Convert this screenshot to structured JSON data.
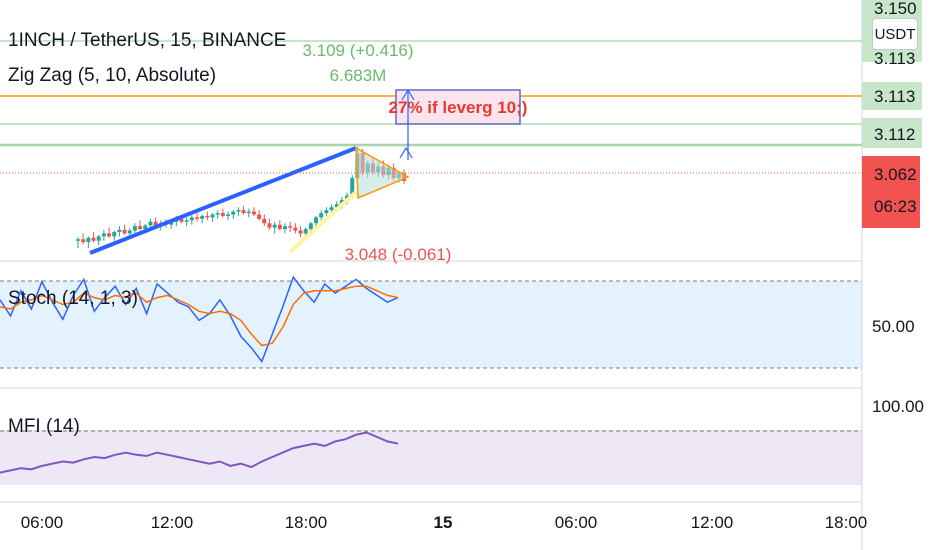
{
  "header": {
    "symbol_line": "1INCH / TetherUS, 15, BINANCE",
    "indicator_line": "Zig Zag (5, 10, Absolute)"
  },
  "price_axis": {
    "unit_button": "USDT",
    "partial_top_label": "3.150",
    "labels": [
      {
        "text": "3.113",
        "bg": "#c8e6c9",
        "fg": "#131722",
        "kind": "line1"
      },
      {
        "text": "3.113",
        "bg": "#c8e6c9",
        "fg": "#131722",
        "kind": "line2"
      },
      {
        "text": "3.112",
        "bg": "#c8e6c9",
        "fg": "#131722",
        "kind": "line3"
      }
    ],
    "current_price": "3.062",
    "countdown": "06:23",
    "current_color": "#f05350",
    "stoch_label": "50.00",
    "mfi_label": "100.00"
  },
  "annotations": {
    "high_price": "3.109 (+0.416)",
    "high_volume": "6.683M",
    "low_price": "3.048 (-0.061)",
    "callout": "27% if leverg 10;)"
  },
  "panes": {
    "stoch_title": "Stoch (14, 1, 3)",
    "mfi_title": "MFI (14)"
  },
  "time_axis": {
    "ticks": [
      "06:00",
      "12:00",
      "18:00",
      "15",
      "06:00",
      "12:00",
      "18:00"
    ]
  },
  "colors": {
    "bull": "#26a69a",
    "bear": "#ef5350",
    "zigzag_blue": "#2962ff",
    "zigzag_yellow": "#fff59d",
    "triangle": "#ff9800",
    "stoch_k": "#2962ff",
    "stoch_d": "#ff6d00",
    "stoch_band": "#e3f2fd",
    "mfi_line": "#7e57c2",
    "mfi_band": "#ede7f6",
    "hline_green": "#a5d6a7",
    "hline_orange": "#ff9800"
  },
  "chart_data": {
    "type": "candlestick",
    "price_scale": {
      "min": 2.94,
      "max": 3.16,
      "ticks_shown": [
        "3.150",
        "3.113",
        "3.113",
        "3.112",
        "3.062"
      ]
    },
    "horizontal_levels": [
      3.113,
      3.113,
      3.112,
      3.109
    ],
    "candles": [
      [
        2.98,
        2.985,
        2.97,
        2.982
      ],
      [
        2.982,
        2.99,
        2.975,
        2.978
      ],
      [
        2.978,
        2.986,
        2.97,
        2.984
      ],
      [
        2.984,
        2.992,
        2.978,
        2.98
      ],
      [
        2.98,
        2.988,
        2.974,
        2.986
      ],
      [
        2.986,
        2.995,
        2.98,
        2.99
      ],
      [
        2.99,
        2.998,
        2.984,
        2.986
      ],
      [
        2.986,
        2.994,
        2.98,
        2.992
      ],
      [
        2.992,
        3.0,
        2.986,
        2.995
      ],
      [
        2.995,
        3.002,
        2.988,
        2.99
      ],
      [
        2.99,
        2.997,
        2.984,
        2.994
      ],
      [
        2.994,
        3.004,
        2.99,
        3.0
      ],
      [
        3.0,
        3.008,
        2.994,
        2.996
      ],
      [
        2.996,
        3.003,
        2.99,
        3.001
      ],
      [
        3.001,
        3.01,
        2.996,
        3.006
      ],
      [
        3.006,
        3.012,
        2.998,
        3.0
      ],
      [
        3.0,
        3.008,
        2.994,
        3.004
      ],
      [
        3.004,
        3.01,
        2.998,
        3.002
      ],
      [
        3.002,
        3.008,
        2.996,
        3.006
      ],
      [
        3.006,
        3.014,
        3.0,
        3.01
      ],
      [
        3.01,
        3.016,
        3.004,
        3.006
      ],
      [
        3.006,
        3.012,
        3.0,
        3.008
      ],
      [
        3.008,
        3.015,
        3.002,
        3.012
      ],
      [
        3.012,
        3.018,
        3.006,
        3.01
      ],
      [
        3.01,
        3.016,
        3.004,
        3.014
      ],
      [
        3.014,
        3.02,
        3.008,
        3.012
      ],
      [
        3.012,
        3.018,
        3.006,
        3.016
      ],
      [
        3.016,
        3.022,
        3.01,
        3.018
      ],
      [
        3.018,
        3.024,
        3.012,
        3.014
      ],
      [
        3.014,
        3.02,
        3.008,
        3.016
      ],
      [
        3.016,
        3.022,
        3.01,
        3.02
      ],
      [
        3.02,
        3.026,
        3.014,
        3.022
      ],
      [
        3.022,
        3.028,
        3.016,
        3.018
      ],
      [
        3.018,
        3.024,
        3.012,
        3.02
      ],
      [
        3.02,
        3.026,
        3.014,
        3.016
      ],
      [
        3.016,
        3.022,
        3.008,
        3.01
      ],
      [
        3.01,
        3.016,
        3.0,
        3.004
      ],
      [
        3.004,
        3.01,
        2.995,
        2.998
      ],
      [
        2.998,
        3.006,
        2.99,
        3.002
      ],
      [
        3.002,
        3.008,
        2.994,
        2.996
      ],
      [
        2.996,
        3.004,
        2.99,
        3.0
      ],
      [
        3.0,
        3.006,
        2.992,
        2.998
      ],
      [
        2.998,
        3.004,
        2.99,
        2.994
      ],
      [
        2.994,
        3.0,
        2.985,
        2.99
      ],
      [
        2.99,
        2.998,
        2.984,
        2.996
      ],
      [
        2.996,
        3.006,
        2.99,
        3.004
      ],
      [
        3.004,
        3.014,
        3.0,
        3.012
      ],
      [
        3.012,
        3.022,
        3.008,
        3.018
      ],
      [
        3.018,
        3.026,
        3.012,
        3.022
      ],
      [
        3.022,
        3.03,
        3.016,
        3.026
      ],
      [
        3.026,
        3.034,
        3.02,
        3.03
      ],
      [
        3.03,
        3.04,
        3.024,
        3.036
      ],
      [
        3.036,
        3.046,
        3.03,
        3.042
      ],
      [
        3.042,
        3.07,
        3.038,
        3.066
      ],
      [
        3.066,
        3.109,
        3.06,
        3.1
      ],
      [
        3.1,
        3.106,
        3.07,
        3.074
      ],
      [
        3.074,
        3.09,
        3.066,
        3.086
      ],
      [
        3.086,
        3.094,
        3.07,
        3.074
      ],
      [
        3.074,
        3.088,
        3.068,
        3.082
      ],
      [
        3.082,
        3.09,
        3.066,
        3.07
      ],
      [
        3.07,
        3.084,
        3.064,
        3.08
      ],
      [
        3.08,
        3.086,
        3.062,
        3.066
      ],
      [
        3.066,
        3.076,
        3.06,
        3.072
      ],
      [
        3.072,
        3.078,
        3.058,
        3.062
      ]
    ],
    "stoch_k": [
      72,
      58,
      80,
      64,
      88,
      70,
      55,
      76,
      90,
      62,
      74,
      84,
      68,
      82,
      60,
      86,
      78,
      70,
      66,
      54,
      60,
      72,
      58,
      40,
      30,
      18,
      42,
      66,
      92,
      80,
      70,
      86,
      78,
      84,
      90,
      82,
      76,
      70,
      74
    ],
    "stoch_d": [
      66,
      64,
      70,
      72,
      76,
      72,
      68,
      70,
      78,
      74,
      72,
      76,
      74,
      78,
      70,
      74,
      76,
      72,
      68,
      62,
      60,
      62,
      60,
      54,
      42,
      32,
      34,
      48,
      68,
      78,
      80,
      80,
      80,
      82,
      84,
      84,
      80,
      76,
      74
    ],
    "stoch_range": [
      0,
      100
    ],
    "mfi": [
      42,
      44,
      46,
      45,
      48,
      50,
      52,
      51,
      54,
      56,
      55,
      58,
      60,
      58,
      57,
      60,
      58,
      56,
      54,
      52,
      50,
      52,
      48,
      50,
      47,
      52,
      56,
      60,
      64,
      66,
      68,
      66,
      70,
      72,
      76,
      78,
      74,
      70,
      68
    ],
    "mfi_range": [
      30,
      100
    ],
    "x_ticks": [
      "06:00",
      "12:00",
      "18:00",
      "15",
      "06:00",
      "12:00",
      "18:00"
    ]
  }
}
